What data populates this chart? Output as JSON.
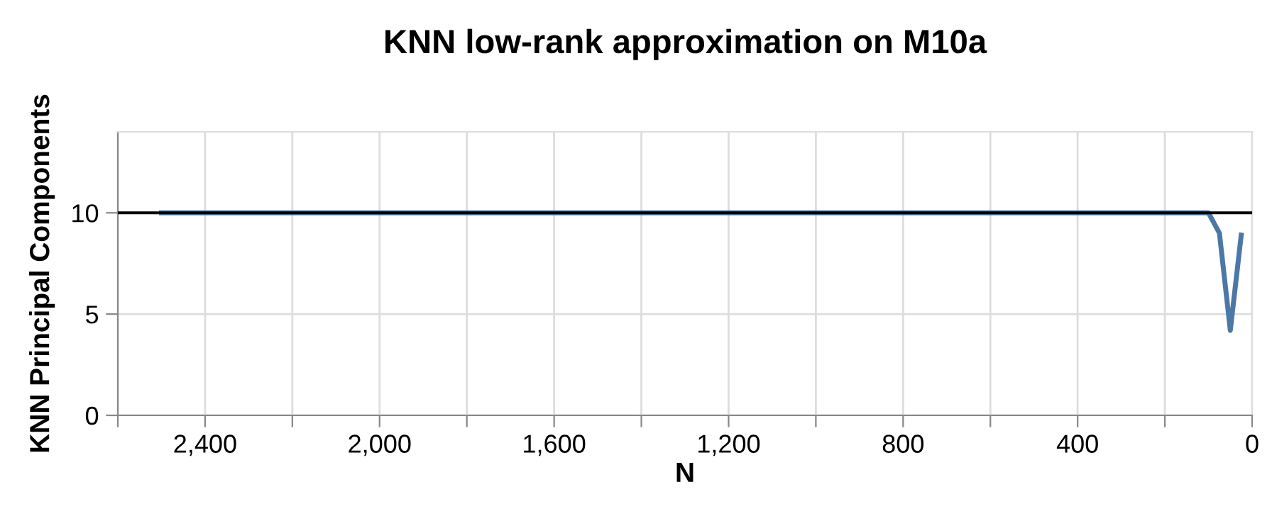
{
  "chart_data": {
    "type": "line",
    "title": "KNN low-rank approximation on M10a",
    "xlabel": "N",
    "ylabel": "KNN Principal Components",
    "series": [
      {
        "color": "#4c78a8",
        "x": [
          2500,
          2000,
          1500,
          1000,
          500,
          100,
          75,
          50,
          25
        ],
        "values": [
          10,
          10,
          10,
          10,
          10,
          10,
          9,
          4.2,
          8.9
        ]
      }
    ],
    "xlim": [
      2600,
      0
    ],
    "xticks": [
      {
        "value": 2600,
        "label": null
      },
      {
        "value": 2400,
        "label": "2,400"
      },
      {
        "value": 2200,
        "label": null
      },
      {
        "value": 2000,
        "label": "2,000"
      },
      {
        "value": 1800,
        "label": null
      },
      {
        "value": 1600,
        "label": "1,600"
      },
      {
        "value": 1400,
        "label": null
      },
      {
        "value": 1200,
        "label": "1,200"
      },
      {
        "value": 1000,
        "label": null
      },
      800,
      {
        "value": 600,
        "label": null
      },
      400,
      {
        "value": 200,
        "label": null
      },
      0
    ],
    "ylim": [
      0,
      14
    ],
    "yticks": [
      0,
      5,
      10
    ],
    "ref_lines": [
      {
        "axis": "y",
        "value": 10,
        "label": null,
        "color": "#000000"
      }
    ],
    "grid": true,
    "marker": "none",
    "line_style": "solid"
  }
}
